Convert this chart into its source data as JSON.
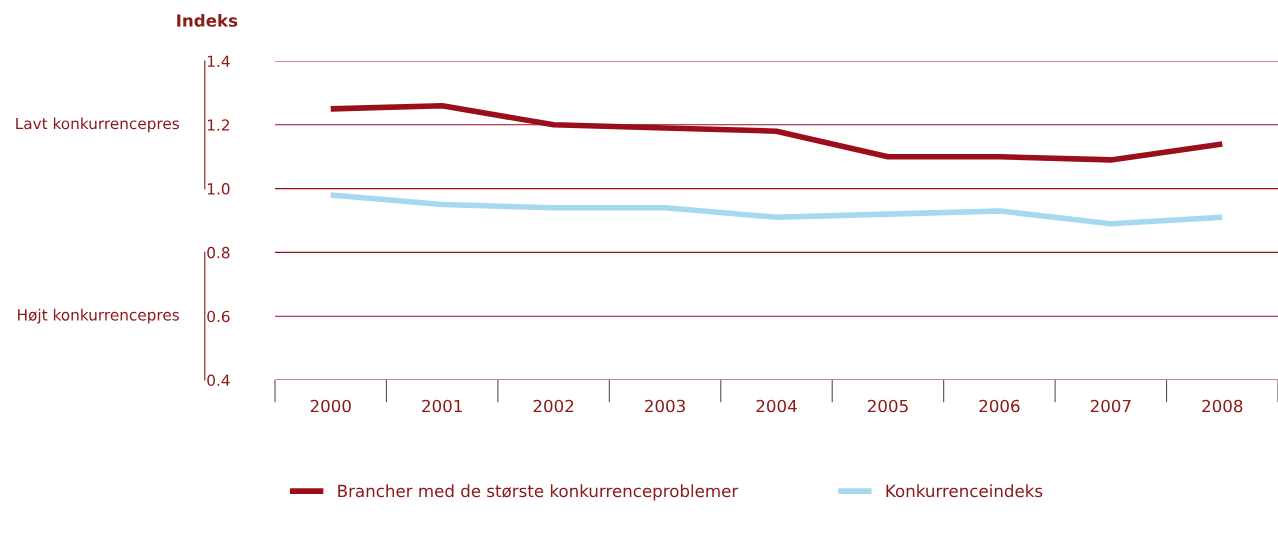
{
  "chart_data": {
    "type": "line",
    "ylabel": "Indeks",
    "categories": [
      "2000",
      "2001",
      "2002",
      "2003",
      "2004",
      "2005",
      "2006",
      "2007",
      "2008"
    ],
    "series": [
      {
        "name": "Brancher med de største konkurrenceproblemer",
        "color": "#9b0e1c",
        "values": [
          1.25,
          1.26,
          1.2,
          1.19,
          1.18,
          1.1,
          1.1,
          1.09,
          1.14
        ]
      },
      {
        "name": "Konkurrenceindeks",
        "color": "#a6d8f0",
        "values": [
          0.98,
          0.95,
          0.94,
          0.94,
          0.91,
          0.92,
          0.93,
          0.89,
          0.91
        ]
      }
    ],
    "ylim": [
      0.4,
      1.4
    ],
    "yticks": [
      {
        "value": 0.4,
        "label": "0.4"
      },
      {
        "value": 0.6,
        "label": "0.6"
      },
      {
        "value": 0.8,
        "label": "0.8"
      },
      {
        "value": 1.0,
        "label": "1.0"
      },
      {
        "value": 1.2,
        "label": "1.2"
      },
      {
        "value": 1.4,
        "label": "1.4"
      }
    ],
    "annotations": [
      "Lavt konkurrencepres",
      "Højt konkurrencepres"
    ],
    "grid": "y",
    "legend": "bottom left",
    "marker": "none",
    "line_style": "solid"
  }
}
